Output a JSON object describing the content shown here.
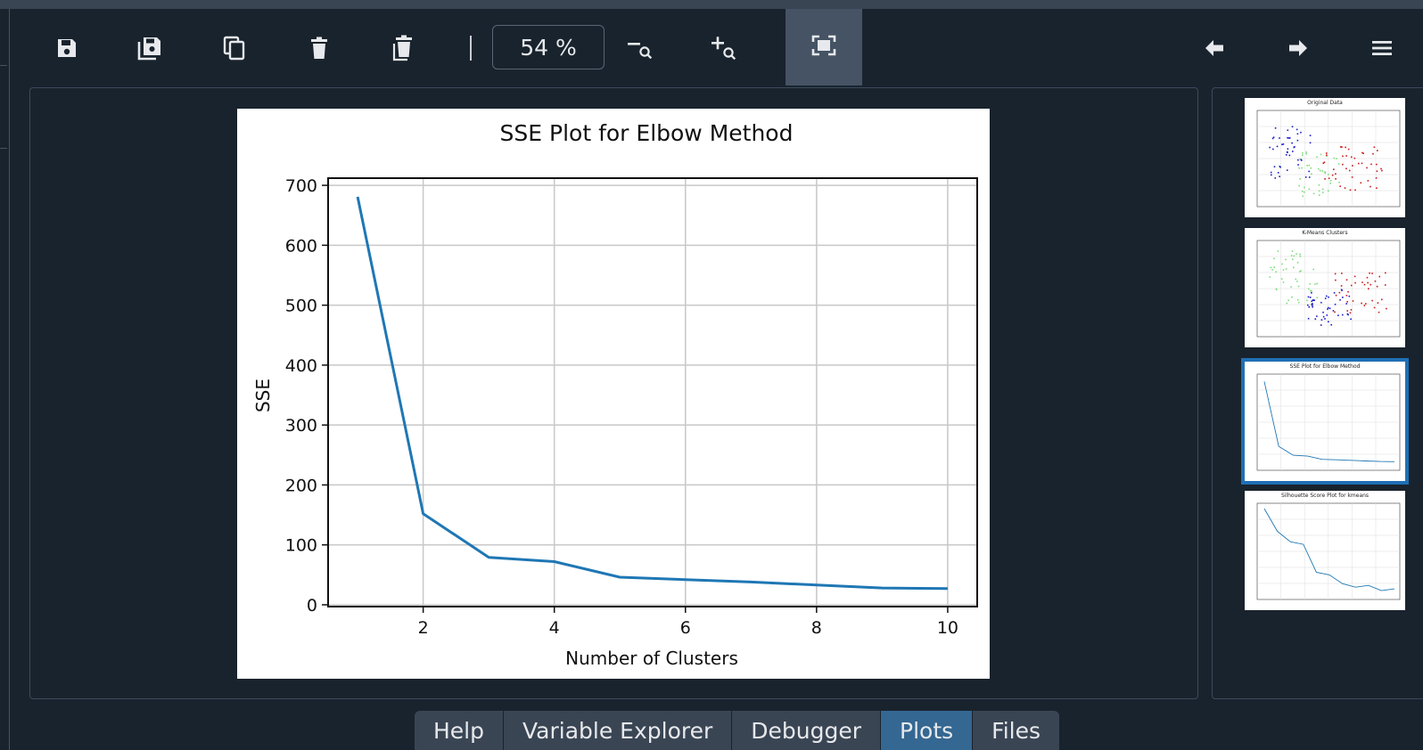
{
  "toolbar": {
    "zoom_value": "54 %",
    "buttons": [
      {
        "name": "save-icon"
      },
      {
        "name": "save-all-icon"
      },
      {
        "name": "copy-icon"
      },
      {
        "name": "delete-icon"
      },
      {
        "name": "delete-all-icon"
      },
      {
        "name": "zoom-out-icon"
      },
      {
        "name": "zoom-in-icon"
      },
      {
        "name": "fit-to-window-icon"
      },
      {
        "name": "previous-arrow-icon"
      },
      {
        "name": "next-arrow-icon"
      },
      {
        "name": "hamburger-menu-icon"
      }
    ]
  },
  "chart_data": {
    "type": "line",
    "title": "SSE Plot for Elbow Method",
    "xlabel": "Number of Clusters",
    "ylabel": "SSE",
    "x": [
      1,
      2,
      3,
      4,
      5,
      6,
      7,
      8,
      9,
      10
    ],
    "y": [
      681,
      152,
      79,
      72,
      46,
      42,
      38,
      33,
      28,
      27
    ],
    "xlim": [
      0.55,
      10.45
    ],
    "ylim": [
      -3,
      712
    ],
    "xticks": [
      2,
      4,
      6,
      8,
      10
    ],
    "yticks": [
      0,
      100,
      200,
      300,
      400,
      500,
      600,
      700
    ],
    "grid": true,
    "color": "#1f77b4"
  },
  "thumbnails": [
    {
      "title": "Original Data",
      "selected": false
    },
    {
      "title": "K-Means Clusters",
      "selected": false
    },
    {
      "title": "SSE Plot for Elbow Method",
      "selected": true
    },
    {
      "title": "Silhouette Score Plot for kmeans",
      "selected": false
    }
  ],
  "tabs": [
    {
      "label": "Help",
      "active": false
    },
    {
      "label": "Variable Explorer",
      "active": false
    },
    {
      "label": "Debugger",
      "active": false
    },
    {
      "label": "Plots",
      "active": true
    },
    {
      "label": "Files",
      "active": false
    }
  ],
  "colors": {
    "background": "#19232d",
    "panel_border": "#3d4a5c",
    "active_tab": "#346792",
    "selection": "#1f6fb5"
  }
}
